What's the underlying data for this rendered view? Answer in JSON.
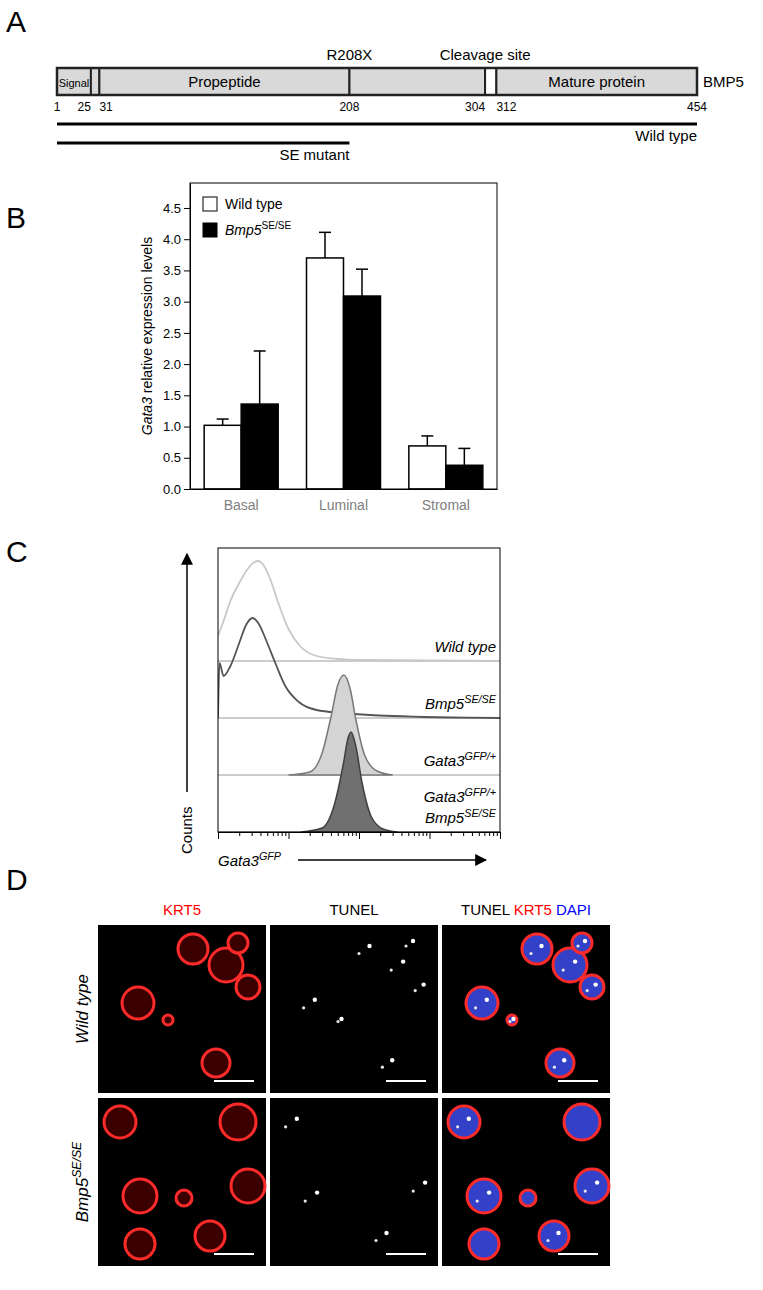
{
  "panel_labels": [
    "A",
    "B",
    "C",
    "D"
  ],
  "diagram": {
    "protein": "BMP5",
    "positions": [
      1,
      25,
      31,
      208,
      304,
      312,
      454
    ],
    "segments": [
      {
        "label": "Signal",
        "start": 1,
        "end": 25,
        "color": "#d9d9d9"
      },
      {
        "start": 25,
        "end": 31,
        "color": "#d9d9d9"
      },
      {
        "label": "Propeptide",
        "start": 31,
        "end": 208,
        "color": "#d9d9d9"
      },
      {
        "start": 208,
        "end": 304,
        "color": "#d9d9d9"
      },
      {
        "start": 304,
        "end": 312,
        "color": "#ffffff"
      },
      {
        "label": "Mature protein",
        "start": 312,
        "end": 454,
        "color": "#d9d9d9"
      }
    ],
    "annotations": [
      {
        "text": "R208X",
        "at": 208
      },
      {
        "text": "Cleavage site",
        "at": 304
      }
    ],
    "constructs": [
      {
        "label": "Wild type",
        "start": 1,
        "end": 454
      },
      {
        "label": "SE mutant",
        "start": 1,
        "end": 208
      }
    ]
  },
  "chart_data": [
    {
      "type": "bar",
      "ylabel": "Gata3 relative expression levels",
      "categories": [
        "Basal",
        "Luminal",
        "Stromal"
      ],
      "series": [
        {
          "name": "Wild type",
          "color": "#ffffff",
          "values": [
            1.02,
            3.7,
            0.69
          ],
          "errors": [
            0.1,
            0.41,
            0.16
          ]
        },
        {
          "name": "Bmp5SE/SE",
          "color": "#000000",
          "values": [
            1.36,
            3.09,
            0.38
          ],
          "errors": [
            0.85,
            0.43,
            0.27
          ]
        }
      ],
      "ylim": [
        0,
        4.9
      ],
      "yticks": [
        {
          "value": 0,
          "label": "0.0"
        },
        0.5,
        {
          "value": 1,
          "label": "1.0"
        },
        1.5,
        {
          "value": 2,
          "label": "2.0"
        },
        2.5,
        {
          "value": 3,
          "label": "3.0"
        },
        3.5,
        {
          "value": 4,
          "label": "4.0"
        },
        4.5
      ],
      "legend": "upper left"
    },
    {
      "type": "line",
      "xlabel": "Gata3GFP",
      "ylabel": "Counts",
      "log": "x",
      "tick_labels": false,
      "xlim": [
        10,
        100000
      ],
      "xticks": [
        10,
        20,
        30,
        40,
        50,
        60,
        70,
        80,
        90,
        100,
        200,
        300,
        400,
        500,
        600,
        700,
        800,
        900,
        1000,
        2000,
        3000,
        4000,
        5000,
        6000,
        7000,
        8000,
        9000,
        10000,
        20000,
        30000,
        40000,
        50000,
        60000,
        70000,
        80000,
        90000,
        100000
      ],
      "ylim": [
        0,
        100
      ],
      "yticks": [],
      "series": [
        {
          "name": "Wild type",
          "type": "line",
          "color": "#c8c8c8",
          "x": [
            10,
            12,
            15,
            20,
            27,
            33,
            37,
            45,
            55,
            70,
            100,
            150,
            250,
            500,
            1000,
            100000
          ],
          "values": [
            25,
            40,
            60,
            78,
            93,
            99,
            100,
            95,
            82,
            60,
            32,
            14,
            5,
            2,
            1,
            0
          ]
        },
        {
          "name": "Bmp5SE/SE",
          "type": "line",
          "color": "#555555",
          "x": [
            10,
            10.5,
            12,
            15,
            20,
            25,
            31,
            38,
            48,
            65,
            90,
            140,
            250,
            600,
            3000,
            100000
          ],
          "values": [
            0,
            55,
            42,
            52,
            75,
            93,
            100,
            94,
            78,
            55,
            32,
            16,
            8,
            5,
            2,
            0
          ]
        },
        {
          "name": "Gata3GFP/+",
          "type": "area",
          "color": "#d4d4d4",
          "x": [
            100,
            200,
            300,
            400,
            500,
            610,
            750,
            900,
            1200,
            1800,
            3000
          ],
          "values": [
            0,
            3,
            22,
            58,
            90,
            100,
            86,
            56,
            20,
            4,
            0
          ]
        },
        {
          "name": "Gata3GFP/+ Bmp5SE/SE",
          "type": "area",
          "color": "#707070",
          "x": [
            150,
            300,
            450,
            600,
            700,
            770,
            900,
            1100,
            1500,
            2200,
            3500
          ],
          "values": [
            0,
            4,
            28,
            68,
            94,
            100,
            86,
            50,
            15,
            3,
            0
          ]
        }
      ]
    }
  ],
  "images": {
    "columns": [
      [
        {
          "text": "KRT5",
          "color": "#ff0000"
        }
      ],
      [
        {
          "text": "TUNEL",
          "color": "#000000"
        }
      ],
      [
        {
          "text": "TUNEL",
          "color": "#000000"
        },
        {
          "text": "KRT5",
          "color": "#ff0000"
        },
        {
          "text": "DAPI",
          "color": "#0000ff"
        }
      ]
    ],
    "rows": [
      "Wild type",
      "Bmp5SE/SE"
    ]
  }
}
